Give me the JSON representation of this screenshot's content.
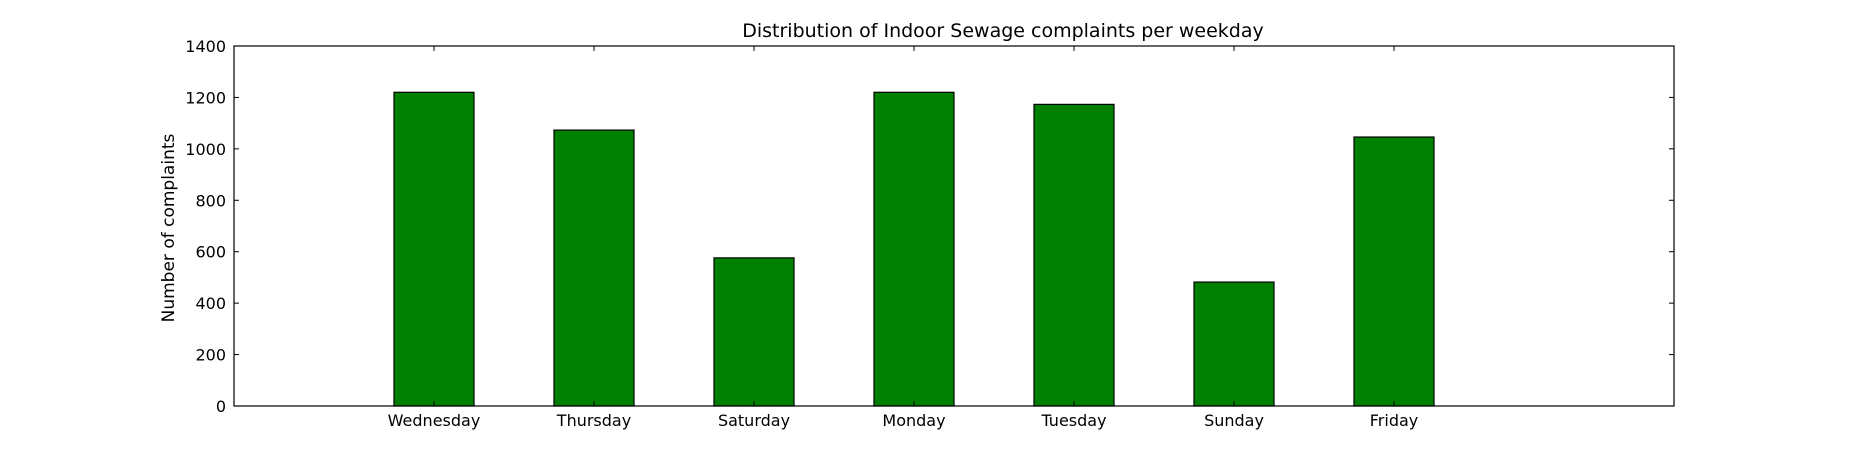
{
  "chart_data": {
    "type": "bar",
    "title": "Distribution of  Indoor Sewage complaints per weekday",
    "xlabel": "",
    "ylabel": "Number of complaints",
    "categories": [
      "Wednesday",
      "Thursday",
      "Saturday",
      "Monday",
      "Tuesday",
      "Sunday",
      "Friday"
    ],
    "values": [
      1220,
      1073,
      576,
      1220,
      1173,
      482,
      1046
    ],
    "ylim": [
      0,
      1400
    ],
    "yticks": [
      0,
      200,
      400,
      600,
      800,
      1000,
      1200,
      1400
    ],
    "bar_color": "#008000",
    "grid": false,
    "legend": "none"
  }
}
